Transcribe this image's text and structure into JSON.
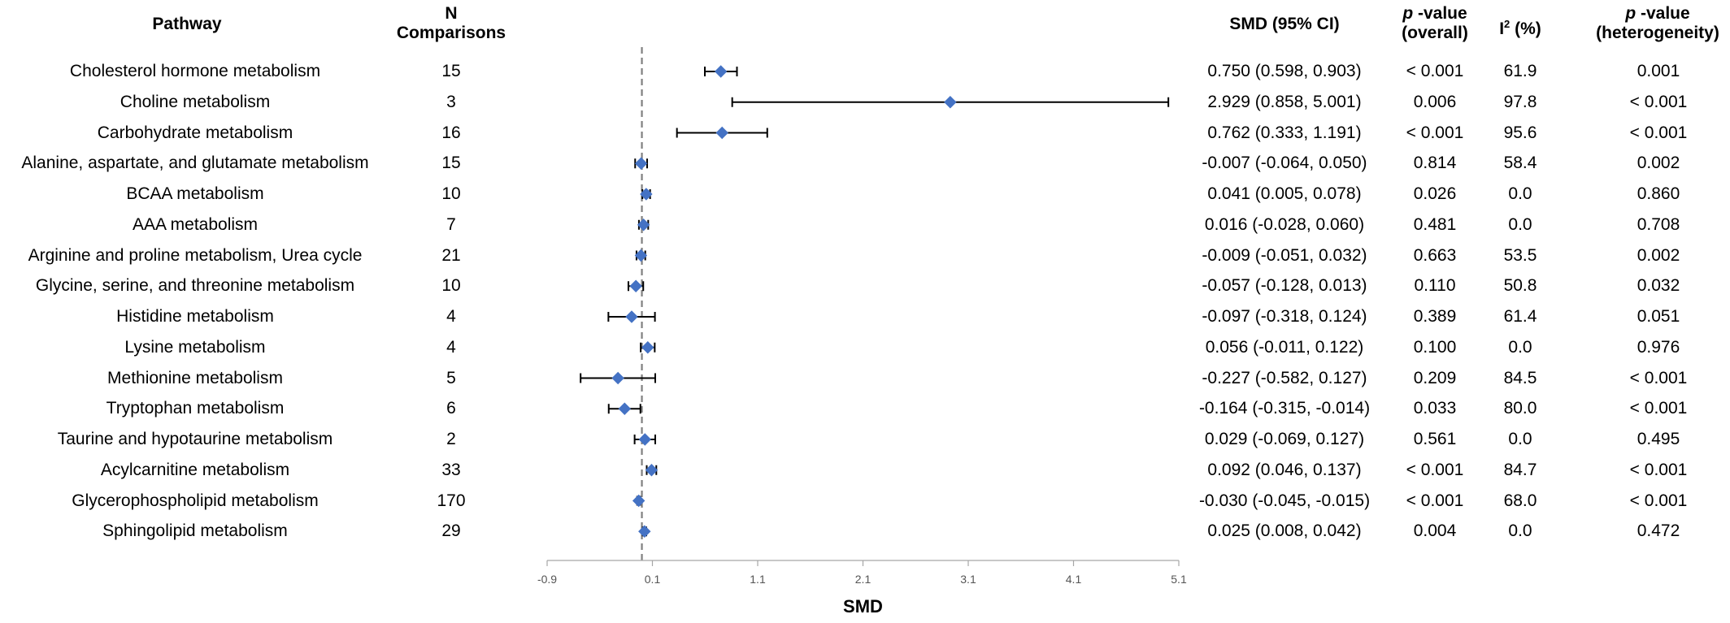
{
  "headers": {
    "pathway": "Pathway",
    "n_line1": "N",
    "n_line2": "Comparisons",
    "smd": "SMD (95% CI)",
    "p_overall_p": "p",
    "p_overall_rest": " -value",
    "p_overall_line2": "(overall)",
    "i2_I": "I",
    "i2_sup": "2",
    "i2_rest": " (%)",
    "p_het_p": "p",
    "p_het_rest": " -value",
    "p_het_line2": "(heterogeneity)"
  },
  "rows": [
    {
      "pathway": "Cholesterol hormone metabolism",
      "n": "15",
      "smd_text": "0.750 (0.598, 0.903)",
      "p_overall": "< 0.001",
      "i2": "61.9",
      "p_het": "0.001"
    },
    {
      "pathway": "Choline metabolism",
      "n": "3",
      "smd_text": "2.929 (0.858, 5.001)",
      "p_overall": "0.006",
      "i2": "97.8",
      "p_het": "< 0.001"
    },
    {
      "pathway": "Carbohydrate metabolism",
      "n": "16",
      "smd_text": "0.762 (0.333, 1.191)",
      "p_overall": "< 0.001",
      "i2": "95.6",
      "p_het": "< 0.001"
    },
    {
      "pathway": "Alanine, aspartate, and glutamate metabolism",
      "n": "15",
      "smd_text": "-0.007 (-0.064, 0.050)",
      "p_overall": "0.814",
      "i2": "58.4",
      "p_het": "0.002"
    },
    {
      "pathway": "BCAA metabolism",
      "n": "10",
      "smd_text": "0.041 (0.005, 0.078)",
      "p_overall": "0.026",
      "i2": "0.0",
      "p_het": "0.860"
    },
    {
      "pathway": "AAA metabolism",
      "n": "7",
      "smd_text": "0.016 (-0.028, 0.060)",
      "p_overall": "0.481",
      "i2": "0.0",
      "p_het": "0.708"
    },
    {
      "pathway": "Arginine and proline metabolism, Urea cycle",
      "n": "21",
      "smd_text": "-0.009 (-0.051, 0.032)",
      "p_overall": "0.663",
      "i2": "53.5",
      "p_het": "0.002"
    },
    {
      "pathway": "Glycine, serine, and threonine metabolism",
      "n": "10",
      "smd_text": "-0.057 (-0.128, 0.013)",
      "p_overall": "0.110",
      "i2": "50.8",
      "p_het": "0.032"
    },
    {
      "pathway": "Histidine metabolism",
      "n": "4",
      "smd_text": "-0.097 (-0.318, 0.124)",
      "p_overall": "0.389",
      "i2": "61.4",
      "p_het": "0.051"
    },
    {
      "pathway": "Lysine metabolism",
      "n": "4",
      "smd_text": "0.056 (-0.011, 0.122)",
      "p_overall": "0.100",
      "i2": "0.0",
      "p_het": "0.976"
    },
    {
      "pathway": "Methionine metabolism",
      "n": "5",
      "smd_text": "-0.227 (-0.582, 0.127)",
      "p_overall": "0.209",
      "i2": "84.5",
      "p_het": "< 0.001"
    },
    {
      "pathway": "Tryptophan metabolism",
      "n": "6",
      "smd_text": "-0.164 (-0.315, -0.014)",
      "p_overall": "0.033",
      "i2": "80.0",
      "p_het": "< 0.001"
    },
    {
      "pathway": "Taurine and hypotaurine metabolism",
      "n": "2",
      "smd_text": "0.029 (-0.069, 0.127)",
      "p_overall": "0.561",
      "i2": "0.0",
      "p_het": "0.495"
    },
    {
      "pathway": "Acylcarnitine metabolism",
      "n": "33",
      "smd_text": "0.092 (0.046, 0.137)",
      "p_overall": "< 0.001",
      "i2": "84.7",
      "p_het": "< 0.001"
    },
    {
      "pathway": "Glycerophospholipid metabolism",
      "n": "170",
      "smd_text": "-0.030 (-0.045, -0.015)",
      "p_overall": "< 0.001",
      "i2": "68.0",
      "p_het": "< 0.001"
    },
    {
      "pathway": "Sphingolipid metabolism",
      "n": "29",
      "smd_text": "0.025 (0.008, 0.042)",
      "p_overall": "0.004",
      "i2": "0.0",
      "p_het": "0.472"
    }
  ],
  "chart_data": {
    "type": "forest",
    "xlabel": "SMD",
    "xlim": [
      -0.9,
      5.1
    ],
    "xticks": [
      -0.9,
      0.1,
      1.1,
      2.1,
      3.1,
      4.1,
      5.1
    ],
    "xtick_labels": [
      "-0.9",
      "0.1",
      "1.1",
      "2.1",
      "3.1",
      "4.1",
      "5.1"
    ],
    "reference_line": 0,
    "marker_color": "#4472C4",
    "points": [
      {
        "label": "Cholesterol hormone metabolism",
        "est": 0.75,
        "lo": 0.598,
        "hi": 0.903
      },
      {
        "label": "Choline metabolism",
        "est": 2.929,
        "lo": 0.858,
        "hi": 5.001
      },
      {
        "label": "Carbohydrate metabolism",
        "est": 0.762,
        "lo": 0.333,
        "hi": 1.191
      },
      {
        "label": "Alanine, aspartate, and glutamate metabolism",
        "est": -0.007,
        "lo": -0.064,
        "hi": 0.05
      },
      {
        "label": "BCAA metabolism",
        "est": 0.041,
        "lo": 0.005,
        "hi": 0.078
      },
      {
        "label": "AAA metabolism",
        "est": 0.016,
        "lo": -0.028,
        "hi": 0.06
      },
      {
        "label": "Arginine and proline metabolism, Urea cycle",
        "est": -0.009,
        "lo": -0.051,
        "hi": 0.032
      },
      {
        "label": "Glycine, serine, and threonine metabolism",
        "est": -0.057,
        "lo": -0.128,
        "hi": 0.013
      },
      {
        "label": "Histidine metabolism",
        "est": -0.097,
        "lo": -0.318,
        "hi": 0.124
      },
      {
        "label": "Lysine metabolism",
        "est": 0.056,
        "lo": -0.011,
        "hi": 0.122
      },
      {
        "label": "Methionine metabolism",
        "est": -0.227,
        "lo": -0.582,
        "hi": 0.127
      },
      {
        "label": "Tryptophan metabolism",
        "est": -0.164,
        "lo": -0.315,
        "hi": -0.014
      },
      {
        "label": "Taurine and hypotaurine metabolism",
        "est": 0.029,
        "lo": -0.069,
        "hi": 0.127
      },
      {
        "label": "Acylcarnitine metabolism",
        "est": 0.092,
        "lo": 0.046,
        "hi": 0.137
      },
      {
        "label": "Glycerophospholipid metabolism",
        "est": -0.03,
        "lo": -0.045,
        "hi": -0.015
      },
      {
        "label": "Sphingolipid metabolism",
        "est": 0.025,
        "lo": 0.008,
        "hi": 0.042
      }
    ]
  }
}
